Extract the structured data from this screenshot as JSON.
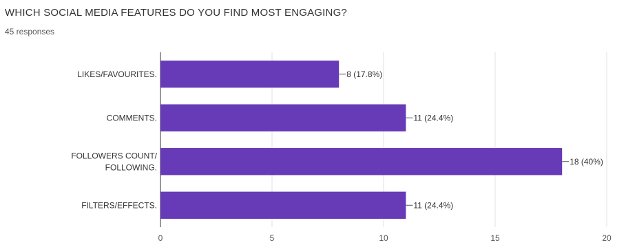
{
  "chart_data": {
    "type": "bar",
    "orientation": "horizontal",
    "title": "WHICH SOCIAL MEDIA FEATURES DO YOU FIND MOST ENGAGING?",
    "subtitle": "45 responses",
    "categories": [
      [
        "LIKES/FAVOURITES."
      ],
      [
        "COMMENTS."
      ],
      [
        "FOLLOWERS COUNT/",
        "FOLLOWING."
      ],
      [
        "FILTERS/EFFECTS."
      ]
    ],
    "values": [
      8,
      11,
      18,
      11
    ],
    "data_labels": [
      "8 (17.8%)",
      "11 (24.4%)",
      "18 (40%)",
      "11 (24.4%)"
    ],
    "xlim": [
      0,
      20
    ],
    "xticks": [
      0,
      5,
      10,
      15,
      20
    ],
    "bar_color": "#673ab7",
    "grid": true
  }
}
